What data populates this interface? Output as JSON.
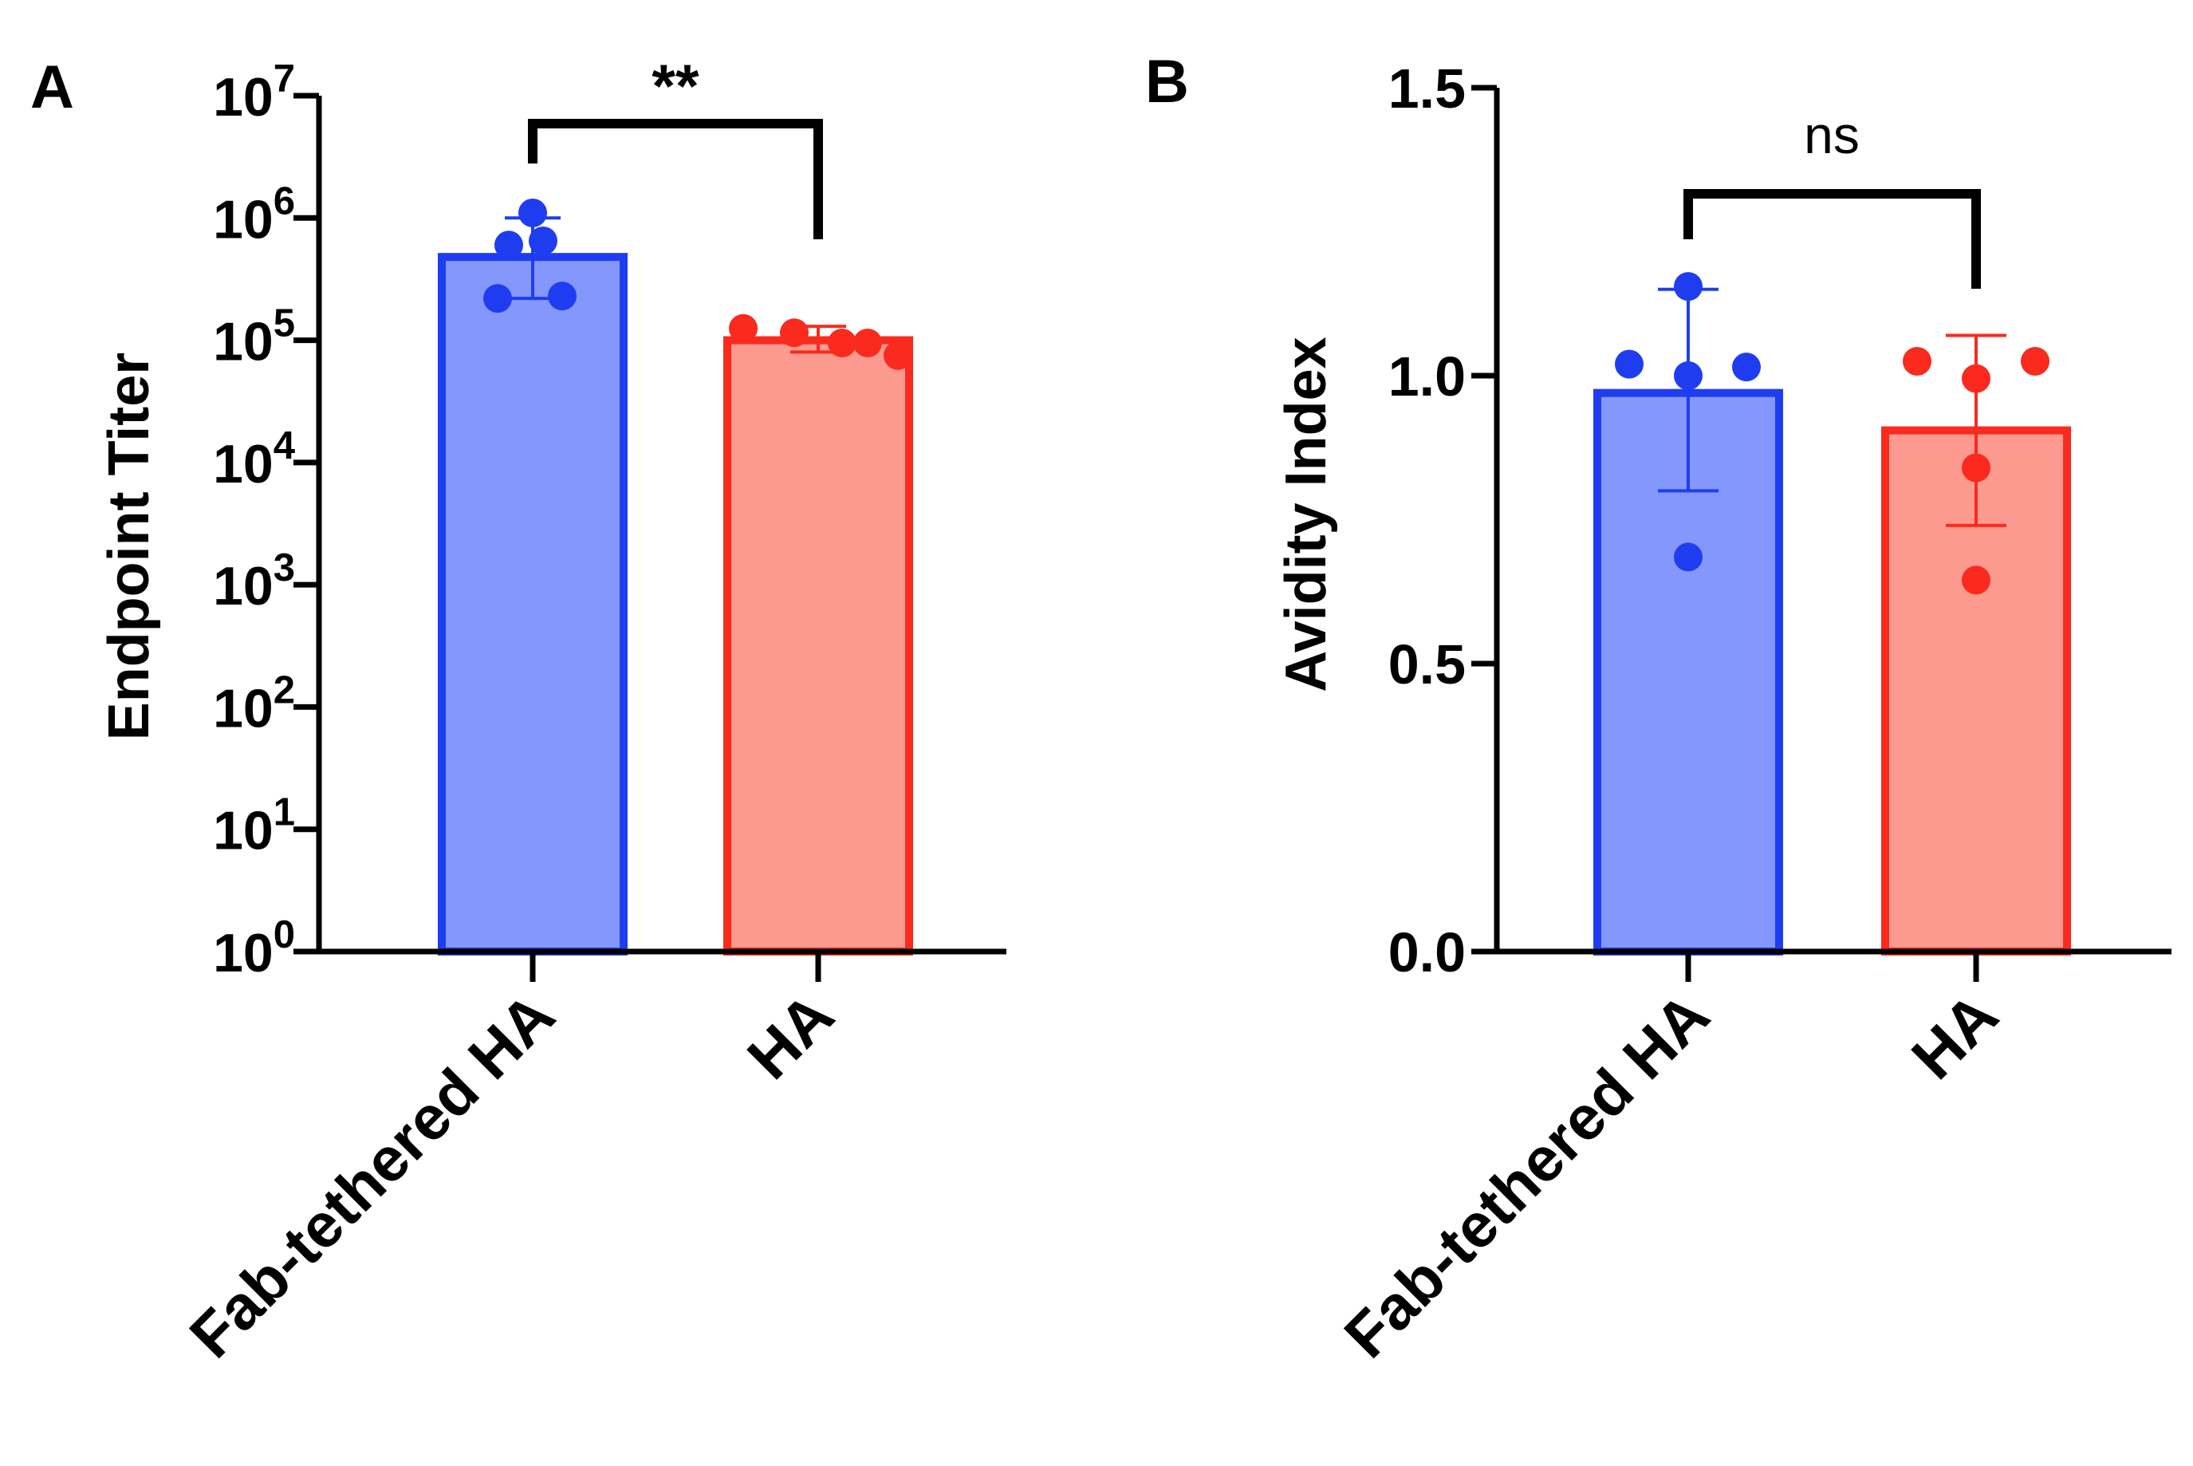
{
  "colors": {
    "axis": "#000000",
    "fab_fill": "#8497FC",
    "fab_edge": "#1F3DF0",
    "ha_fill": "#FC9A90",
    "ha_edge": "#FA2A1E"
  },
  "chart_data": [
    {
      "panel": "A",
      "type": "bar",
      "title": "",
      "xlabel": "",
      "ylabel": "Endpoint Titer",
      "yscale": "log10",
      "ylim": [
        1,
        10000000
      ],
      "yticks": [
        {
          "base": "10",
          "exp": "0"
        },
        {
          "base": "10",
          "exp": "1"
        },
        {
          "base": "10",
          "exp": "2"
        },
        {
          "base": "10",
          "exp": "3"
        },
        {
          "base": "10",
          "exp": "4"
        },
        {
          "base": "10",
          "exp": "5"
        },
        {
          "base": "10",
          "exp": "6"
        },
        {
          "base": "10",
          "exp": "7"
        }
      ],
      "categories": [
        "Fab-tethered HA",
        "HA"
      ],
      "series": [
        {
          "name": "Fab-tethered HA",
          "mean": 480000,
          "error_low": 220000,
          "error_high": 1000000,
          "points": [
            1100000,
            600000,
            650000,
            220000,
            230000
          ]
        },
        {
          "name": "HA",
          "mean": 100000,
          "error_low": 80000,
          "error_high": 130000,
          "points": [
            125000,
            115000,
            95000,
            95000,
            75000
          ]
        }
      ],
      "significance": {
        "label": "**",
        "between": [
          "Fab-tethered HA",
          "HA"
        ]
      }
    },
    {
      "panel": "B",
      "type": "bar",
      "title": "",
      "xlabel": "",
      "ylabel": "Avidity Index",
      "yscale": "linear",
      "ylim": [
        0,
        1.5
      ],
      "yticks": [
        {
          "base": "0.0"
        },
        {
          "base": "0.5"
        },
        {
          "base": "1.0"
        },
        {
          "base": "1.5"
        }
      ],
      "categories": [
        "Fab-tethered HA",
        "HA"
      ],
      "series": [
        {
          "name": "Fab-tethered HA",
          "mean": 0.97,
          "error_low": 0.8,
          "error_high": 1.15,
          "points": [
            1.155,
            1.02,
            1.0,
            1.015,
            0.685
          ]
        },
        {
          "name": "HA",
          "mean": 0.905,
          "error_low": 0.74,
          "error_high": 1.07,
          "points": [
            1.025,
            0.995,
            1.025,
            0.84,
            0.645
          ]
        }
      ],
      "significance": {
        "label": "ns",
        "between": [
          "Fab-tethered HA",
          "HA"
        ]
      }
    }
  ]
}
